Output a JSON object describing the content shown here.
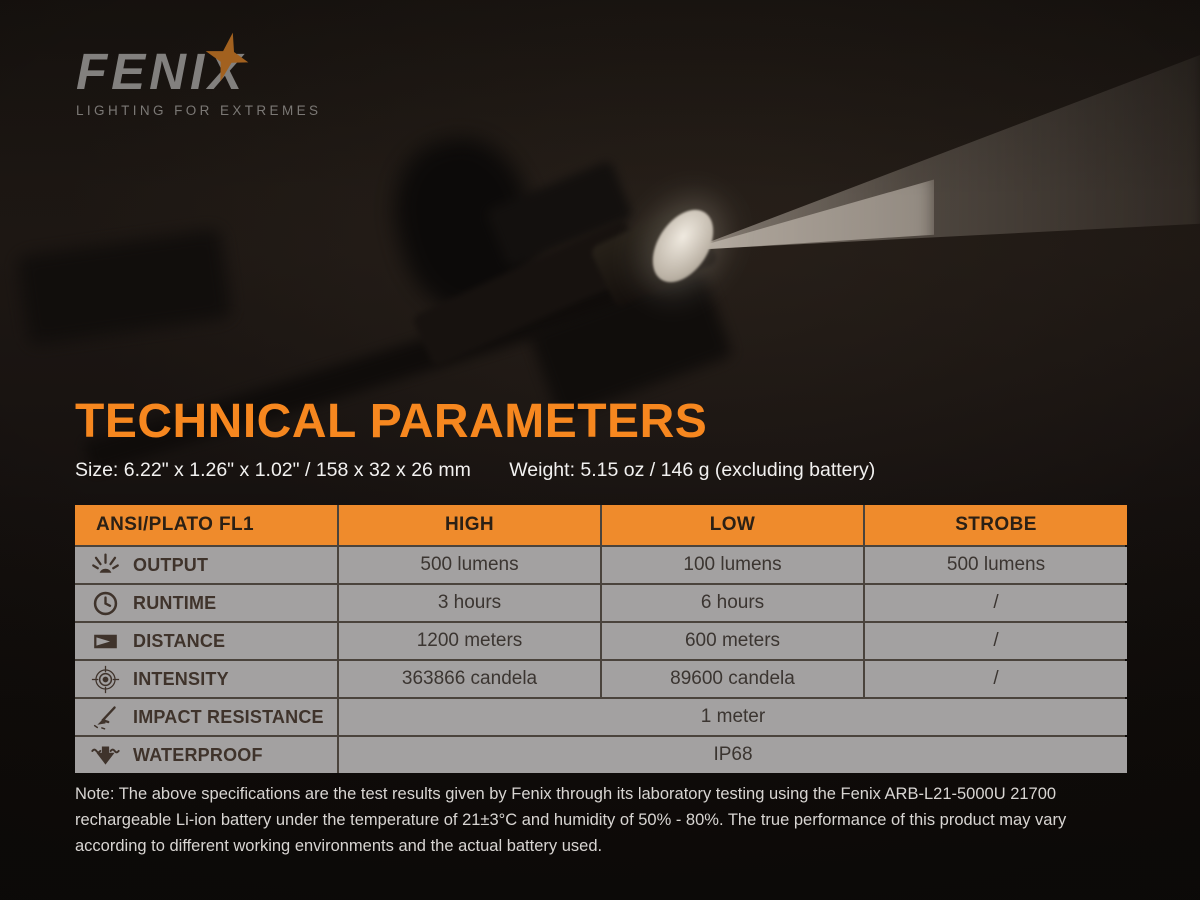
{
  "logo": {
    "brand": "FENIX",
    "tagline": "LIGHTING FOR EXTREMES",
    "star_color": "#a2611f"
  },
  "page": {
    "title": "TECHNICAL PARAMETERS",
    "size_label": "Size: 6.22\" x 1.26\" x 1.02\" / 158 x 32 x 26 mm",
    "weight_label": "Weight: 5.15 oz / 146 g (excluding battery)",
    "note": "Note: The above specifications are the test results given by Fenix through its laboratory testing using the Fenix ARB-L21-5000U 21700 rechargeable Li-ion battery under the temperature of 21±3°C and humidity of 50% - 80%. The true performance of this product may vary according to different working environments and the actual battery used."
  },
  "colors": {
    "accent_orange": "#f6871f",
    "table_header_bg": "#ef8b2c",
    "table_row_bg": "#a3a1a1",
    "table_text": "#3b3531",
    "icon_color": "#3f332b"
  },
  "chart_data": {
    "type": "table",
    "title": "ANSI/PLATO FL1",
    "columns": [
      "ANSI/PLATO FL1",
      "HIGH",
      "LOW",
      "STROBE"
    ],
    "rows": [
      {
        "icon": "output-icon",
        "label": "OUTPUT",
        "values": [
          "500 lumens",
          "100 lumens",
          "500 lumens"
        ]
      },
      {
        "icon": "runtime-icon",
        "label": "RUNTIME",
        "values": [
          "3 hours",
          "6 hours",
          "/"
        ]
      },
      {
        "icon": "distance-icon",
        "label": "DISTANCE",
        "values": [
          "1200 meters",
          "600 meters",
          "/"
        ]
      },
      {
        "icon": "intensity-icon",
        "label": "INTENSITY",
        "values": [
          "363866 candela",
          "89600 candela",
          "/"
        ]
      },
      {
        "icon": "impact-resistance-icon",
        "label": "IMPACT RESISTANCE",
        "values": [
          "1 meter"
        ],
        "span": true
      },
      {
        "icon": "waterproof-icon",
        "label": "WATERPROOF",
        "values": [
          "IP68"
        ],
        "span": true
      }
    ]
  }
}
